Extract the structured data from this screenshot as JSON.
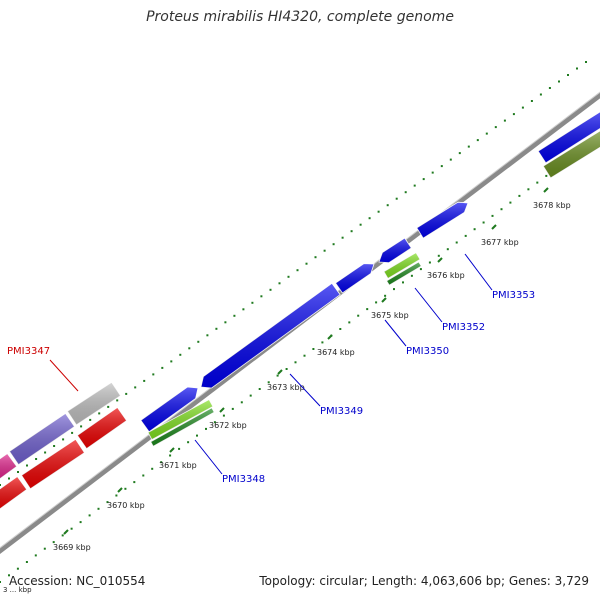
{
  "title": "Proteus mirabilis HI4320, complete genome",
  "footer": {
    "accession": "Accession: NC_010554",
    "summary": "Topology: circular; Length: 4,063,606 bp; Genes: 3,729"
  },
  "colors": {
    "backbone": "#8a8a8a",
    "tick_green": "#1f7a1f",
    "label_blue": "#0000cc",
    "label_red": "#cc0000",
    "gene_blue": "#0000ee",
    "gene_red": "#ee0000",
    "gene_grey": "#c0c0c0",
    "gene_purple": "#7060d0",
    "gene_magenta": "#e0208a",
    "gene_lightgreen": "#80e020",
    "gene_darkgreen": "#1e8a1e",
    "gene_olive": "#6a8f20"
  },
  "ticks": [
    "3669 kbp",
    "3670 kbp",
    "3671 kbp",
    "3672 kbp",
    "3673 kbp",
    "3674 kbp",
    "3675 kbp",
    "3676 kbp",
    "3677 kbp",
    "3678 kbp"
  ],
  "genes": [
    {
      "label": "PMI3347",
      "color": "label_red"
    },
    {
      "label": "PMI3348",
      "color": "label_blue"
    },
    {
      "label": "PMI3349",
      "color": "label_blue"
    },
    {
      "label": "PMI3350",
      "color": "label_blue"
    },
    {
      "label": "PMI3352",
      "color": "label_blue"
    },
    {
      "label": "PMI3353",
      "color": "label_blue"
    }
  ],
  "corner_text": "3 ... kbp"
}
